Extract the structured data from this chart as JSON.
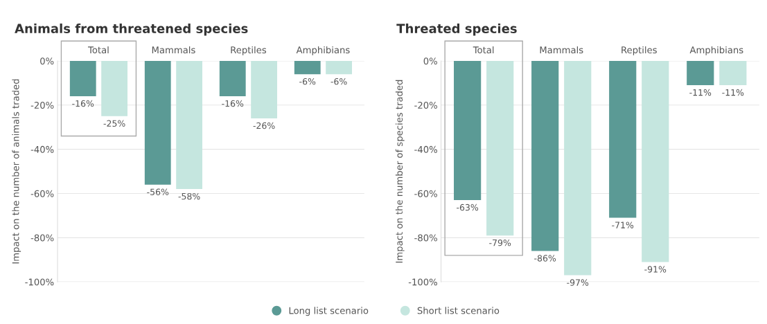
{
  "chart_data": [
    {
      "type": "bar",
      "title": "Animals from threatened species",
      "ylabel": "Impact on the number of animals traded",
      "categories": [
        "Total",
        "Mammals",
        "Reptiles",
        "Amphibians"
      ],
      "series": [
        {
          "name": "Long list scenario",
          "color": "#5b9a95",
          "values": [
            -16,
            -56,
            -16,
            -6
          ],
          "value_labels": [
            "-16%",
            "-56%",
            "-16%",
            "-6%"
          ]
        },
        {
          "name": "Short list scenario",
          "color": "#c5e6df",
          "values": [
            -25,
            -58,
            -26,
            -6
          ],
          "value_labels": [
            "-25%",
            "-58%",
            "-26%",
            "-6%"
          ]
        }
      ],
      "ylim": [
        -100,
        0
      ],
      "yticks": [
        {
          "value": 0,
          "label": "0%"
        },
        {
          "value": -20,
          "label": "-20%"
        },
        {
          "value": -40,
          "label": "-40%"
        },
        {
          "value": -60,
          "label": "-60%"
        },
        {
          "value": -80,
          "label": "-80%"
        },
        {
          "value": -100,
          "label": "-100%"
        }
      ],
      "grid": "y",
      "legend": "bottom"
    },
    {
      "type": "bar",
      "title": "Threated species",
      "ylabel": "Impact on the number of species traded",
      "categories": [
        "Total",
        "Mammals",
        "Reptiles",
        "Amphibians"
      ],
      "series": [
        {
          "name": "Long list scenario",
          "color": "#5b9a95",
          "values": [
            -63,
            -86,
            -71,
            -11
          ],
          "value_labels": [
            "-63%",
            "-86%",
            "-71%",
            "-11%"
          ]
        },
        {
          "name": "Short list scenario",
          "color": "#c5e6df",
          "values": [
            -79,
            -97,
            -91,
            -11
          ],
          "value_labels": [
            "-79%",
            "-97%",
            "-91%",
            "-11%"
          ]
        }
      ],
      "ylim": [
        -100,
        0
      ],
      "yticks": [
        {
          "value": 0,
          "label": "0%"
        },
        {
          "value": -20,
          "label": "-20%"
        },
        {
          "value": -40,
          "label": "-40%"
        },
        {
          "value": -60,
          "label": "-60%"
        },
        {
          "value": -80,
          "label": "-80%"
        },
        {
          "value": -100,
          "label": "-100%"
        }
      ],
      "grid": "y",
      "legend": "bottom"
    }
  ]
}
